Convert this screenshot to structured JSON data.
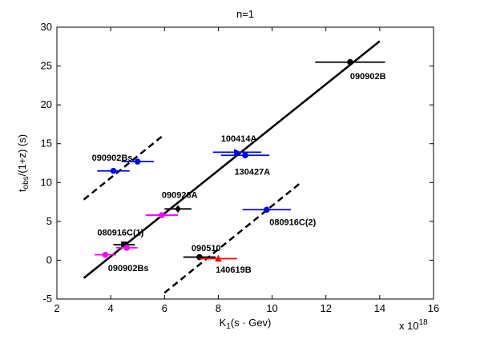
{
  "chart_data": {
    "type": "scatter",
    "title": "n=1",
    "xlabel_main": "K",
    "xlabel_sub": "1",
    "xlabel_rest": "(s · Gev)",
    "ylabel_main": "t",
    "ylabel_sub": "obs",
    "ylabel_rest": "/(1+z) (s)",
    "x_multiplier_base": "x 10",
    "x_multiplier_exp": "18",
    "xlim": [
      2,
      16
    ],
    "ylim": [
      -5,
      30
    ],
    "xticks": [
      2,
      4,
      6,
      8,
      10,
      12,
      14,
      16
    ],
    "yticks": [
      -5,
      0,
      5,
      10,
      15,
      20,
      25,
      30
    ],
    "grid": false,
    "lines": [
      {
        "name": "fit",
        "style": "solid",
        "x": [
          3.0,
          14.0
        ],
        "y": [
          -2.3,
          28.2
        ]
      },
      {
        "name": "upper-bound",
        "style": "dashed",
        "x": [
          3.0,
          6.0
        ],
        "y": [
          7.8,
          16.2
        ]
      },
      {
        "name": "lower-bound",
        "style": "dashed",
        "x": [
          6.0,
          11.0
        ],
        "y": [
          -4.2,
          9.8
        ]
      }
    ],
    "points": [
      {
        "x": 12.9,
        "y": 25.5,
        "xerr_low": 1.3,
        "xerr_high": 1.3,
        "color": "#000000",
        "marker": "circle"
      },
      {
        "x": 8.7,
        "y": 13.9,
        "xerr_low": 0.9,
        "xerr_high": 0.9,
        "color": "#0000ff",
        "marker": "triangle-right"
      },
      {
        "x": 9.0,
        "y": 13.5,
        "xerr_low": 0.9,
        "xerr_high": 0.9,
        "color": "#0000ff",
        "marker": "circle"
      },
      {
        "x": 5.0,
        "y": 12.7,
        "xerr_low": 0.6,
        "xerr_high": 0.6,
        "color": "#0000ff",
        "marker": "circle"
      },
      {
        "x": 4.1,
        "y": 11.5,
        "xerr_low": 0.6,
        "xerr_high": 0.6,
        "color": "#0000ff",
        "marker": "circle"
      },
      {
        "x": 6.5,
        "y": 6.6,
        "xerr_low": 0.5,
        "xerr_high": 0.5,
        "color": "#000000",
        "marker": "diamond"
      },
      {
        "x": 5.9,
        "y": 5.8,
        "xerr_low": 0.6,
        "xerr_high": 0.6,
        "color": "#ff00ff",
        "marker": "circle"
      },
      {
        "x": 9.8,
        "y": 6.5,
        "xerr_low": 0.9,
        "xerr_high": 0.9,
        "color": "#0000ff",
        "marker": "circle"
      },
      {
        "x": 4.5,
        "y": 2.0,
        "xerr_low": 0.4,
        "xerr_high": 0.4,
        "color": "#000000",
        "marker": "square"
      },
      {
        "x": 4.6,
        "y": 1.6,
        "xerr_low": 0.4,
        "xerr_high": 0.4,
        "color": "#ff00ff",
        "marker": "circle"
      },
      {
        "x": 3.8,
        "y": 0.7,
        "xerr_low": 0.4,
        "xerr_high": 0.4,
        "color": "#ff00ff",
        "marker": "circle"
      },
      {
        "x": 7.3,
        "y": 0.4,
        "xerr_low": 0.6,
        "xerr_high": 0.6,
        "color": "#000000",
        "marker": "circle"
      },
      {
        "x": 8.0,
        "y": 0.2,
        "xerr_low": 0.7,
        "xerr_high": 0.7,
        "color": "#ff0000",
        "marker": "triangle-up"
      }
    ],
    "annotations": [
      {
        "text": "090902B",
        "x": 12.9,
        "y": 23.3
      },
      {
        "text": "100414A",
        "x": 8.1,
        "y": 15.3
      },
      {
        "text": "130427A",
        "x": 8.6,
        "y": 11.0
      },
      {
        "text": "090902Bs",
        "x": 3.3,
        "y": 12.8
      },
      {
        "text": "090926A",
        "x": 5.9,
        "y": 8.0
      },
      {
        "text": "080916C(2)",
        "x": 9.9,
        "y": 4.5
      },
      {
        "text": "080916C(1)",
        "x": 3.5,
        "y": 3.2
      },
      {
        "text": "090510",
        "x": 7.0,
        "y": 1.2
      },
      {
        "text": "140619B",
        "x": 7.9,
        "y": -1.6
      },
      {
        "text": "090902Bs",
        "x": 3.9,
        "y": -1.4
      }
    ]
  }
}
